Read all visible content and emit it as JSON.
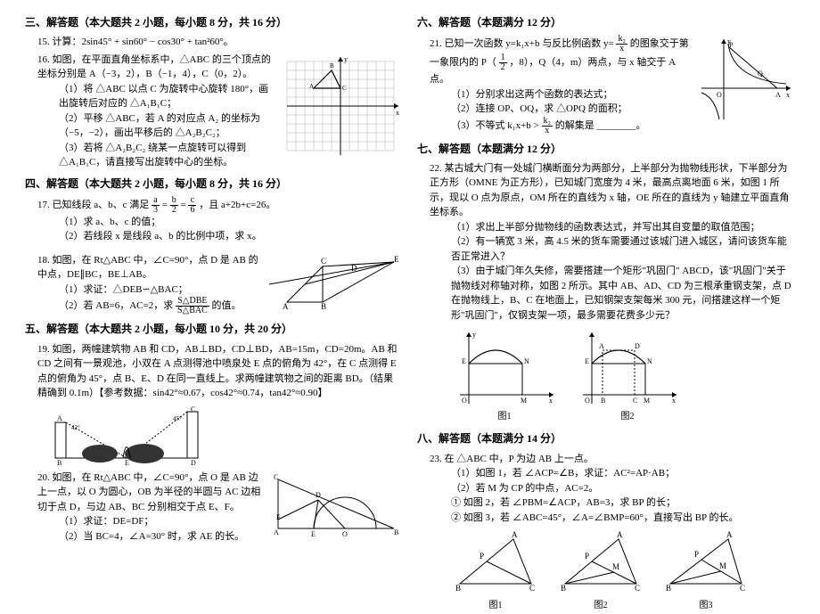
{
  "left": {
    "sec3": {
      "title": "三、解答题（本大题共 2 小题，每小题 8 分，共 16 分）",
      "q15": "15. 计算：2sin45° + sin60° − cos30° + tan²60°。",
      "q16": {
        "stem": "16. 如图，在平面直角坐标系中，△ABC 的三个顶点的坐标分别是 A（−3，2），B（−1，4），C（0，2）。",
        "s1": "（1）将 △ABC 以点 C 为旋转中心旋转 180°，画出旋转后对应的 △A₁B₁C；",
        "s2": "（2）平移 △ABC，若 A 的对应点 A₂ 的坐标为（−5，−2），画出平移后的 △A₂B₂C₂；",
        "s3": "（3）若将 △A₂B₂C₂ 绕某一点旋转可以得到 △A₁B₁C，请直接写出旋转中心的坐标。"
      }
    },
    "sec4": {
      "title": "四、解答题（本大题共 2 小题，每小题 8 分，共 16 分）",
      "q17": {
        "stem": "17. 已知线段 a、b、c 满足",
        "eq": "，且 a+2b+c=26。",
        "s1": "（1）求 a、b、c 的值；",
        "s2": "（2）若线段 x 是线段 a、b 的比例中项，求 x。"
      },
      "q18": {
        "stem": "18. 如图，在 Rt△ABC 中，∠C=90°，点 D 是 AB 的中点，DE∥BC，BE⊥AB。",
        "s1": "（1）求证：△DEB∽△BAC；",
        "s2": "（2）若 AB=6，AC=2，求",
        "s2b": "的值。"
      }
    },
    "sec5": {
      "title": "五、解答题（本大题共 2 小题，每小题 10 分，共 20 分）",
      "q19": {
        "stem": "19. 如图，两幢建筑物 AB 和 CD，AB⊥BD，CD⊥BD，AB=15m，CD=20m。AB 和 CD 之间有一景观池，小双在 A 点测得池中喷泉处 E 点的俯角为 42°，在 C 点测得 E 点的俯角为 45°，点 B、E、D 在同一直线上。求两幢建筑物之间的距离 BD。（结果精确到 0.1m）【参考数据：sin42°≈0.67，cos42°≈0.74，tan42°≈0.90】"
      },
      "q20": {
        "stem": "20. 如图，在 Rt△ABC 中，∠C=90°，点 O 是 AB 边上一点，以 O 为圆心，OB 为半径的半圆与 AC 边相切于点 D，与边 AB、BC 分别相交于点 E、F。",
        "s1": "（1）求证：DE=DF；",
        "s2": "（2）当 BC=4，∠A=30° 时，求 AE 的长。"
      }
    }
  },
  "right": {
    "sec6": {
      "title": "六、解答题（本题满分 12 分）",
      "q21": {
        "stem": "21. 已知一次函数 y=k₁x+b 与反比例函数 y=",
        "stem2": "的图象交于第一象限内的 P（",
        "stem3": "，8），Q（4，m）两点，与 x 轴交于 A 点。",
        "s1": "（1）分别求出这两个函数的表达式；",
        "s2": "（2）连接 OP、OQ，求 △OPQ 的面积；",
        "s3": "（3）不等式 k₁x+b >",
        "s3b": "的解集是 ________。"
      }
    },
    "sec7": {
      "title": "七、解答题（本题满分 12 分）",
      "q22": {
        "stem": "22. 某古城大门有一处城门横断面分为两部分，上半部分为抛物线形状，下半部分为正方形（OMNE 为正方形），已知城门宽度为 4 米，最高点离地面 6 米，如图 1 所示，现以 O 点为原点，OM 所在的直线为 x 轴，OE 所在的直线为 y 轴建立平面直角坐标系。",
        "s1": "（1）求出上半部分抛物线的函数表达式，并写出其自变量的取值范围；",
        "s2": "（2）有一辆宽 3 米，高 4.5 米的货车需要通过该城门进入城区，请问该货车能否正常进入？",
        "s3": "（3）由于城门年久失修，需要搭建一个矩形\"巩固门\" ABCD，该\"巩固门\"关于抛物线对称轴对称，如图 2 所示。其中 AB、AD、CD 为三根承重钢支架，点 D 在抛物线上，B、C 在地面上，已知钢架支架每米 300 元，问搭建这样一个矩形\"巩固门\"，仅钢支架一项，最多需要花费多少元？"
      }
    },
    "sec8": {
      "title": "八、解答题（本题满分 14 分）",
      "q23": {
        "stem": "23. 在 △ABC 中，P 为边 AB 上一点。",
        "s1": "（1）如图 1，若 ∠ACP=∠B，求证：AC²=AP·AB；",
        "s2": "（2）若 M 为 CP 的中点，AC=2。",
        "s2a": "① 如图 2，若 ∠PBM=∠ACP，AB=3，求 BP 的长；",
        "s2b": "② 如图 3，若 ∠ABC=45°，∠A=∠BMP=60°，直接写出 BP 的长。"
      }
    }
  },
  "figlabels": {
    "f1": "图1",
    "f2": "图2",
    "f3": "图3"
  }
}
